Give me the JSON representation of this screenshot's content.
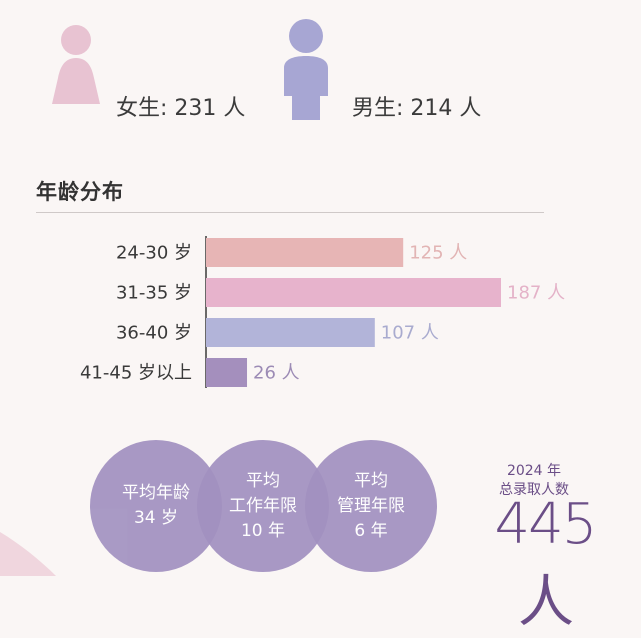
{
  "gender": {
    "female_label": "女生: 231 人",
    "male_label": "男生: 214 人",
    "female_color": "#e8c3d2",
    "male_color": "#a7a6d3"
  },
  "age_section": {
    "title": "年龄分布"
  },
  "chart_data": {
    "type": "bar",
    "orientation": "horizontal",
    "categories": [
      "24-30 岁",
      "31-35 岁",
      "36-40 岁",
      "41-45 岁以上"
    ],
    "values": [
      125,
      187,
      107,
      26
    ],
    "value_labels": [
      "125 人",
      "187 人",
      "107 人",
      "26 人"
    ],
    "bar_colors": [
      "#e7b5b5",
      "#e7b3cc",
      "#b2b4d9",
      "#a48fbd"
    ],
    "label_colors": [
      "#e2b4b4",
      "#e4b2c8",
      "#a9abcf",
      "#9c8bb5"
    ],
    "title": "",
    "xlabel": "",
    "ylabel": "",
    "xlim": [
      0,
      187
    ],
    "grid": false
  },
  "stats": [
    {
      "lines": [
        "平均年龄",
        "34 岁"
      ]
    },
    {
      "lines": [
        "平均",
        "工作年限",
        "10 年"
      ]
    },
    {
      "lines": [
        "平均",
        "管理年限",
        "6 年"
      ]
    }
  ],
  "total": {
    "year": "2024 年",
    "caption": "总录取人数",
    "value": "445人"
  }
}
